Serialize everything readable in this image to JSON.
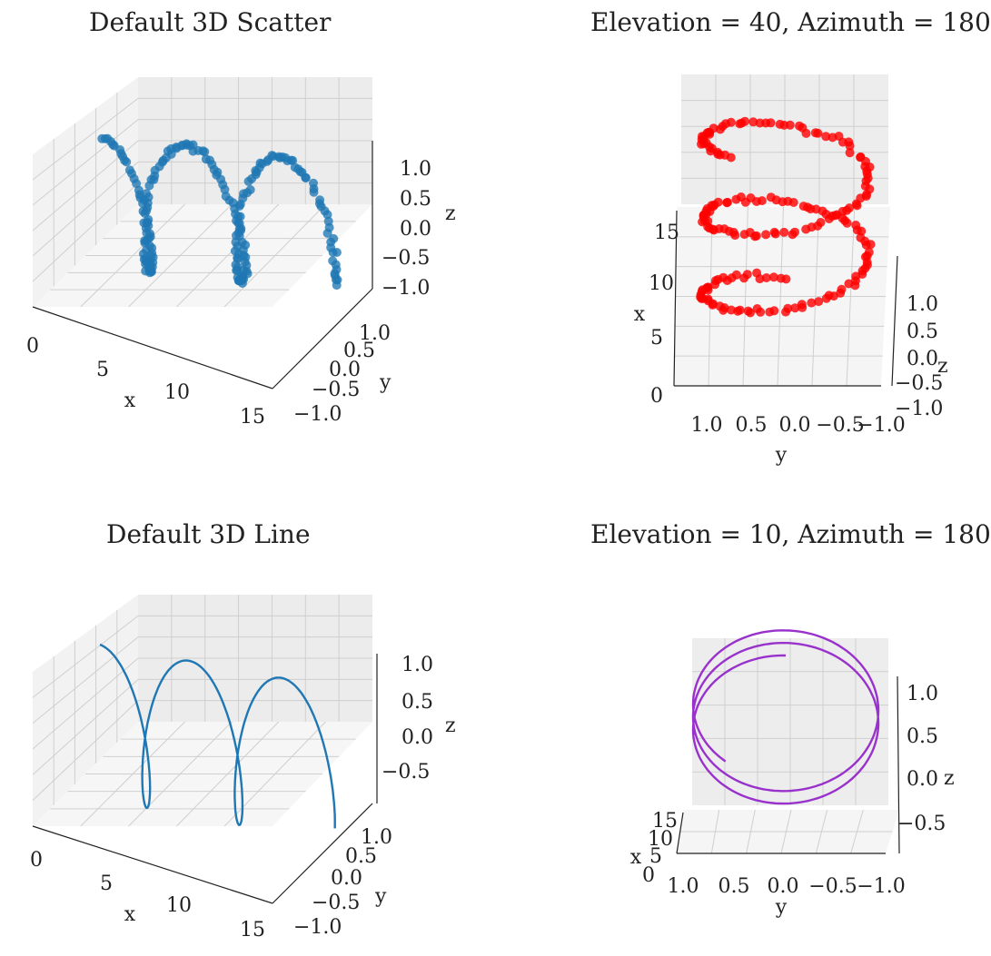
{
  "chart_data": [
    {
      "type": "scatter3d",
      "title": "Default 3D Scatter",
      "color": "#1f77b4",
      "view": {
        "elevation": 30,
        "azimuth": -60
      },
      "xlabel": "x",
      "ylabel": "y",
      "zlabel": "z",
      "xticks": [
        "0",
        "5",
        "10",
        "15"
      ],
      "yticks": [
        "1.0",
        "0.5",
        "0.0",
        "−0.5",
        "−1.0"
      ],
      "zticks": [
        "1.0",
        "0.5",
        "0.0",
        "−0.5",
        "−1.0"
      ],
      "xlim": [
        0,
        15
      ],
      "ylim": [
        -1,
        1
      ],
      "zlim": [
        -1,
        1
      ],
      "data": {
        "x_range": [
          0,
          15
        ],
        "y": "sin(x)",
        "z": "cos(x)",
        "points": 200,
        "noise": "random"
      }
    },
    {
      "type": "scatter3d",
      "title": "Elevation = 40, Azimuth = 180",
      "color": "#ff0000",
      "view": {
        "elevation": 40,
        "azimuth": 180
      },
      "xlabel": "x",
      "ylabel": "y",
      "zlabel": "z",
      "xticks": [
        "0",
        "5",
        "10",
        "15"
      ],
      "yticks": [
        "1.0",
        "0.5",
        "0.0",
        "−0.5",
        "−1.0"
      ],
      "zticks": [
        "1.0",
        "0.5",
        "0.0",
        "−0.5",
        "−1.0"
      ],
      "xlim": [
        0,
        15
      ],
      "ylim": [
        -1,
        1
      ],
      "zlim": [
        -1,
        1
      ],
      "data": {
        "x_range": [
          0,
          15
        ],
        "y": "sin(x)",
        "z": "cos(x)",
        "points": 200,
        "noise": "random"
      }
    },
    {
      "type": "line3d",
      "title": "Default 3D Line",
      "color": "#1f77b4",
      "view": {
        "elevation": 30,
        "azimuth": -60
      },
      "xlabel": "x",
      "ylabel": "y",
      "zlabel": "z",
      "xticks": [
        "0",
        "5",
        "10",
        "15"
      ],
      "yticks": [
        "1.0",
        "0.5",
        "0.0",
        "−0.5",
        "−1.0"
      ],
      "zticks": [
        "1.0",
        "0.5",
        "0.0",
        "−0.5"
      ],
      "xlim": [
        0,
        15
      ],
      "ylim": [
        -1,
        1
      ],
      "zlim": [
        -1,
        1
      ],
      "data": {
        "x_range": [
          0,
          15
        ],
        "y": "sin(x)",
        "z": "cos(x)"
      }
    },
    {
      "type": "line3d",
      "title": "Elevation = 10, Azimuth = 180",
      "color": "#9932cc",
      "view": {
        "elevation": 10,
        "azimuth": 180
      },
      "xlabel": "x",
      "ylabel": "y",
      "zlabel": "z",
      "xticks": [
        "0",
        "5",
        "10",
        "15"
      ],
      "yticks": [
        "1.0",
        "0.5",
        "0.0",
        "−0.5",
        "−1.0"
      ],
      "zticks": [
        "1.0",
        "0.5",
        "0.0",
        "−0.5"
      ],
      "xlim": [
        0,
        15
      ],
      "ylim": [
        -1,
        1
      ],
      "zlim": [
        -1,
        1
      ],
      "data": {
        "x_range": [
          0,
          15
        ],
        "y": "sin(x)",
        "z": "cos(x)"
      }
    }
  ]
}
